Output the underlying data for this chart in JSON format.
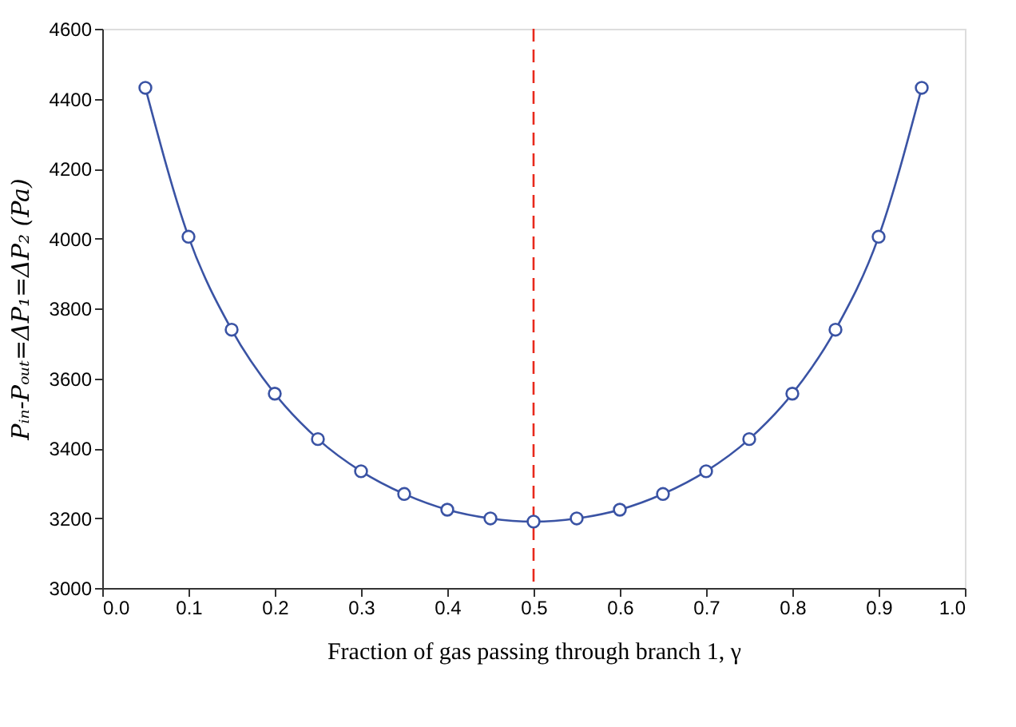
{
  "chart_data": {
    "type": "line",
    "xlabel": "Fraction of gas passing through branch 1, γ",
    "ylabel": "Pᵢₙ-Pₒᵤₜ=ΔP₁=ΔP₂ (Pa)",
    "x": [
      0.05,
      0.1,
      0.15,
      0.2,
      0.25,
      0.3,
      0.35,
      0.4,
      0.45,
      0.5,
      0.55,
      0.6,
      0.65,
      0.7,
      0.75,
      0.8,
      0.85,
      0.9,
      0.95
    ],
    "series": [
      {
        "color": "#3a53a4",
        "values": [
          4431,
          4005,
          3739,
          3556,
          3426,
          3334,
          3269,
          3224,
          3199,
          3190,
          3199,
          3224,
          3269,
          3334,
          3426,
          3556,
          3739,
          4005,
          4431
        ]
      }
    ],
    "xlim": [
      0,
      1
    ],
    "ylim": [
      3000,
      4600
    ],
    "xticks": [
      {
        "value": 0,
        "label": "0.0"
      },
      0.1,
      0.2,
      0.3,
      0.4,
      0.5,
      0.6,
      0.7,
      0.8,
      0.9,
      {
        "value": 1,
        "label": "1.0"
      }
    ],
    "yticks": [
      3000,
      3200,
      3400,
      3600,
      3800,
      4000,
      4200,
      4400,
      4600
    ],
    "ref_lines": [
      {
        "axis": "x",
        "value": 0.5,
        "color": "#e8291c",
        "line_style": "dashed"
      }
    ],
    "marker": "circle",
    "line_style": "solid",
    "grid": false
  }
}
